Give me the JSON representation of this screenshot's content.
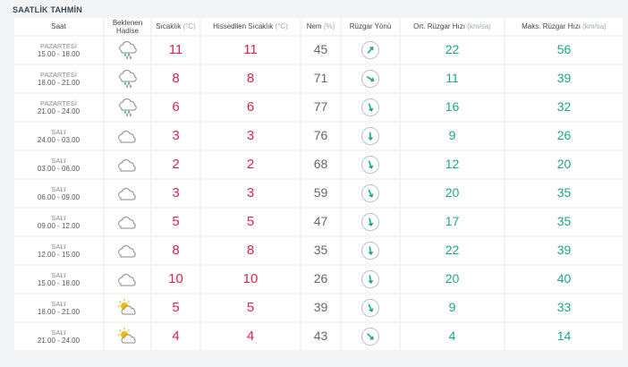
{
  "title": "SAATLİK TAHMİN",
  "headers": {
    "saat": "Saat",
    "hadise_1": "Beklenen",
    "hadise_2": "Hadise",
    "sicaklik": "Sıcaklık",
    "sicaklik_unit": "(°C)",
    "hissedilen": "Hissedilen Sıcaklık",
    "hissedilen_unit": "(°C)",
    "nem": "Nem",
    "nem_unit": "(%)",
    "ruzgar_yonu": "Rüzgar Yönü",
    "ort_ruzgar": "Ort. Rüzgar Hızı",
    "ort_ruzgar_unit": "(km/sa)",
    "maks_ruzgar": "Maks. Rüzgar Hızı",
    "maks_ruzgar_unit": "(km/sa)"
  },
  "colors": {
    "temp": "#d6264b",
    "wind": "#1ea58a",
    "arrow": "#1ea58a"
  },
  "rows": [
    {
      "day": "PAZARTESİ",
      "time": "15.00 - 18.00",
      "icon": "rain-cloud-icon",
      "temp": "11",
      "feels": "11",
      "hum": "45",
      "dir_deg": 40,
      "avg": "22",
      "max": "56"
    },
    {
      "day": "PAZARTESİ",
      "time": "18.00 - 21.00",
      "icon": "rain-cloud-icon",
      "temp": "8",
      "feels": "8",
      "hum": "71",
      "dir_deg": 120,
      "avg": "11",
      "max": "39"
    },
    {
      "day": "PAZARTESİ",
      "time": "21.00 - 24.00",
      "icon": "rain-cloud-icon",
      "temp": "6",
      "feels": "6",
      "hum": "77",
      "dir_deg": 160,
      "avg": "16",
      "max": "32"
    },
    {
      "day": "SALI",
      "time": "24.00 - 03.00",
      "icon": "cloud-icon",
      "temp": "3",
      "feels": "3",
      "hum": "76",
      "dir_deg": 175,
      "avg": "9",
      "max": "26"
    },
    {
      "day": "SALI",
      "time": "03.00 - 06.00",
      "icon": "cloud-icon",
      "temp": "2",
      "feels": "2",
      "hum": "68",
      "dir_deg": 160,
      "avg": "12",
      "max": "20"
    },
    {
      "day": "SALI",
      "time": "06.00 - 09.00",
      "icon": "cloud-icon",
      "temp": "3",
      "feels": "3",
      "hum": "59",
      "dir_deg": 155,
      "avg": "20",
      "max": "35"
    },
    {
      "day": "SALI",
      "time": "09.00 - 12.00",
      "icon": "cloud-icon",
      "temp": "5",
      "feels": "5",
      "hum": "47",
      "dir_deg": 165,
      "avg": "17",
      "max": "35"
    },
    {
      "day": "SALI",
      "time": "12.00 - 15.00",
      "icon": "cloud-icon",
      "temp": "8",
      "feels": "8",
      "hum": "35",
      "dir_deg": 170,
      "avg": "22",
      "max": "39"
    },
    {
      "day": "SALI",
      "time": "15.00 - 18.00",
      "icon": "cloud-icon",
      "temp": "10",
      "feels": "10",
      "hum": "26",
      "dir_deg": 170,
      "avg": "20",
      "max": "40"
    },
    {
      "day": "SALI",
      "time": "18.00 - 21.00",
      "icon": "partly-sunny-icon",
      "temp": "5",
      "feels": "5",
      "hum": "39",
      "dir_deg": 155,
      "avg": "9",
      "max": "33"
    },
    {
      "day": "SALI",
      "time": "21.00 - 24.00",
      "icon": "partly-sunny-icon",
      "temp": "4",
      "feels": "4",
      "hum": "43",
      "dir_deg": 135,
      "avg": "4",
      "max": "14"
    }
  ]
}
